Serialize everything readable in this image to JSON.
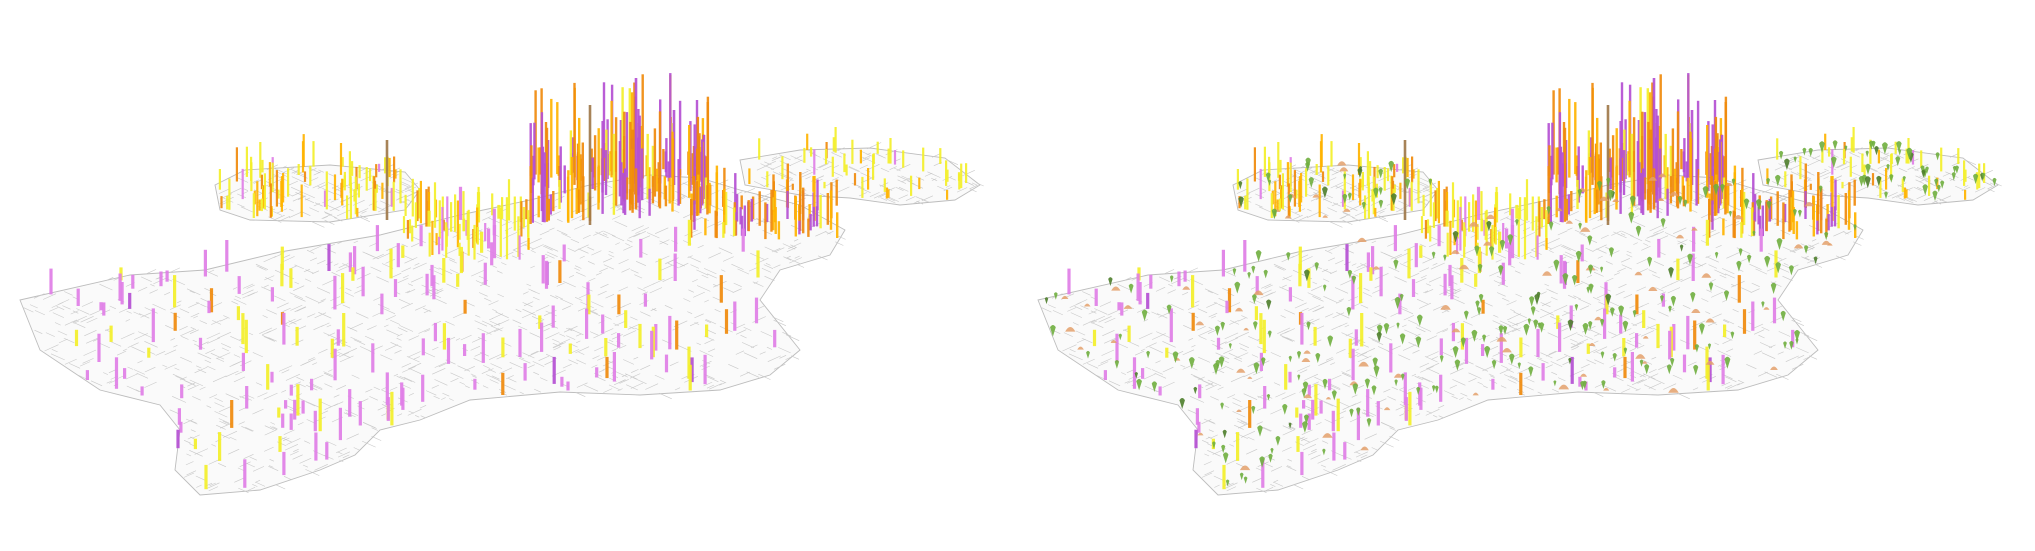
{
  "figure": {
    "panels": [
      {
        "id": "left",
        "layers": [
          "urban-fabric",
          "building-height-bars"
        ]
      },
      {
        "id": "right",
        "layers": [
          "urban-fabric",
          "building-height-bars",
          "green-trees",
          "orange-mounds"
        ]
      }
    ]
  },
  "colors": {
    "background": "#ffffff",
    "boundary": "#bdbdbd",
    "streets": "#c9c9c9",
    "bar_violet": "#b44fd2",
    "bar_pink": "#e07ee6",
    "bar_orange": "#f08a0c",
    "bar_amber": "#ffb300",
    "bar_yellow": "#f3ef2a",
    "bar_brown": "#a0784a",
    "tree_green": "#6fae3e",
    "tree_dark": "#4d7d2a",
    "mound_orange": "#e3a06b"
  }
}
